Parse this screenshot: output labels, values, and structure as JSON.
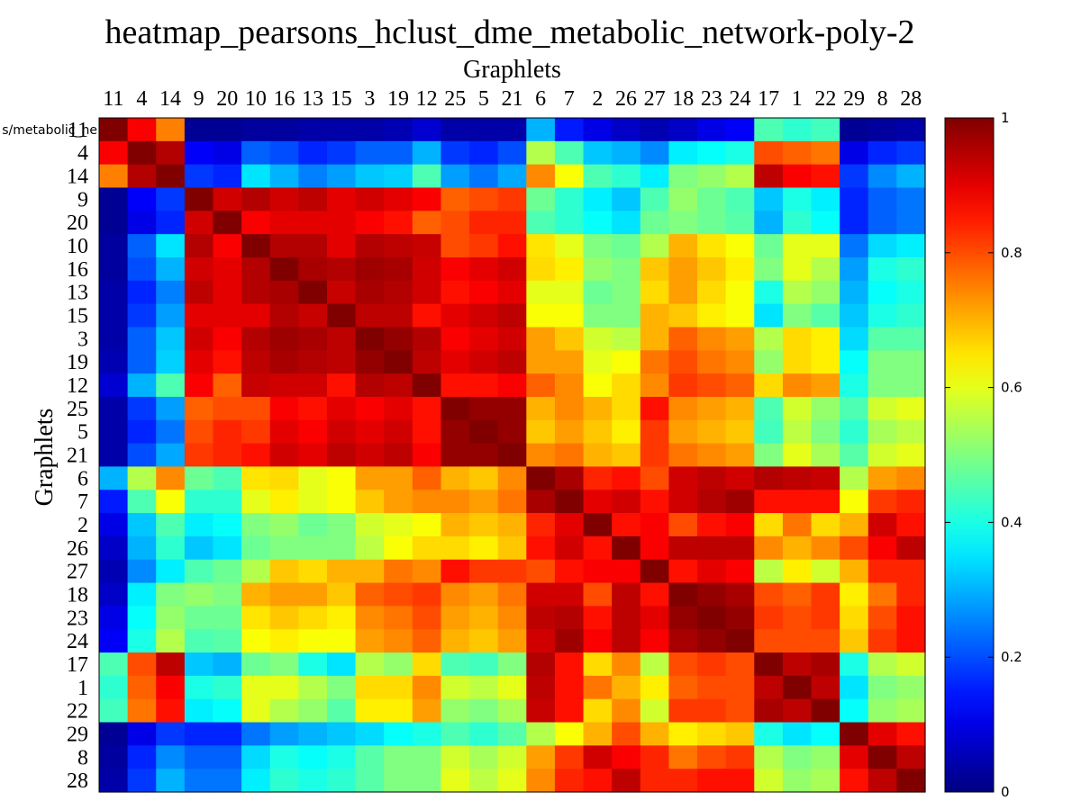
{
  "chart_data": {
    "type": "heatmap",
    "title": "heatmap_pearsons_hclust_dme_metabolic_network-poly-2",
    "xlabel": "Graphlets",
    "ylabel": "Graphlets",
    "clipped_row_label": "s/metabolic_ne",
    "colormap": "jet",
    "clim": [
      0,
      1
    ],
    "colorbar_ticks": [
      "0",
      "0.2",
      "0.4",
      "0.6",
      "0.8",
      "1"
    ],
    "colorbar_tick_values": [
      0,
      0.2,
      0.4,
      0.6,
      0.8,
      1
    ],
    "labels": [
      "11",
      "4",
      "14",
      "9",
      "20",
      "10",
      "16",
      "13",
      "15",
      "3",
      "19",
      "12",
      "25",
      "5",
      "21",
      "6",
      "7",
      "2",
      "26",
      "27",
      "18",
      "23",
      "24",
      "17",
      "1",
      "22",
      "29",
      "8",
      "28"
    ],
    "values": [
      [
        1.0,
        0.88,
        0.75,
        0.02,
        0.02,
        0.03,
        0.03,
        0.04,
        0.04,
        0.04,
        0.05,
        0.08,
        0.04,
        0.04,
        0.04,
        0.3,
        0.15,
        0.1,
        0.07,
        0.05,
        0.07,
        0.1,
        0.12,
        0.45,
        0.42,
        0.44,
        0.02,
        0.03,
        0.04
      ],
      [
        0.88,
        1.0,
        0.95,
        0.12,
        0.1,
        0.22,
        0.2,
        0.16,
        0.18,
        0.22,
        0.22,
        0.3,
        0.18,
        0.16,
        0.2,
        0.55,
        0.45,
        0.32,
        0.3,
        0.26,
        0.36,
        0.38,
        0.4,
        0.8,
        0.78,
        0.76,
        0.1,
        0.16,
        0.18
      ],
      [
        0.75,
        0.95,
        1.0,
        0.18,
        0.16,
        0.35,
        0.3,
        0.25,
        0.28,
        0.32,
        0.33,
        0.45,
        0.28,
        0.24,
        0.29,
        0.74,
        0.62,
        0.45,
        0.42,
        0.36,
        0.5,
        0.52,
        0.55,
        0.94,
        0.88,
        0.86,
        0.18,
        0.26,
        0.3
      ],
      [
        0.02,
        0.12,
        0.18,
        1.0,
        0.92,
        0.95,
        0.92,
        0.94,
        0.9,
        0.92,
        0.9,
        0.88,
        0.78,
        0.8,
        0.82,
        0.48,
        0.42,
        0.36,
        0.32,
        0.45,
        0.52,
        0.48,
        0.45,
        0.32,
        0.4,
        0.36,
        0.16,
        0.22,
        0.24
      ],
      [
        0.02,
        0.1,
        0.16,
        0.92,
        1.0,
        0.88,
        0.9,
        0.9,
        0.9,
        0.88,
        0.86,
        0.78,
        0.8,
        0.84,
        0.84,
        0.45,
        0.42,
        0.38,
        0.35,
        0.48,
        0.5,
        0.48,
        0.46,
        0.3,
        0.42,
        0.38,
        0.16,
        0.22,
        0.24
      ],
      [
        0.03,
        0.22,
        0.35,
        0.95,
        0.88,
        1.0,
        0.95,
        0.95,
        0.9,
        0.95,
        0.94,
        0.93,
        0.8,
        0.82,
        0.86,
        0.65,
        0.6,
        0.5,
        0.48,
        0.55,
        0.7,
        0.65,
        0.62,
        0.48,
        0.6,
        0.6,
        0.24,
        0.34,
        0.36
      ],
      [
        0.03,
        0.2,
        0.3,
        0.92,
        0.9,
        0.95,
        1.0,
        0.96,
        0.95,
        0.97,
        0.96,
        0.92,
        0.88,
        0.9,
        0.92,
        0.66,
        0.64,
        0.52,
        0.5,
        0.68,
        0.72,
        0.68,
        0.64,
        0.5,
        0.6,
        0.55,
        0.28,
        0.4,
        0.42
      ],
      [
        0.04,
        0.16,
        0.25,
        0.94,
        0.9,
        0.95,
        0.96,
        1.0,
        0.93,
        0.96,
        0.95,
        0.92,
        0.86,
        0.88,
        0.9,
        0.6,
        0.6,
        0.48,
        0.5,
        0.66,
        0.72,
        0.66,
        0.62,
        0.4,
        0.55,
        0.52,
        0.3,
        0.38,
        0.4
      ],
      [
        0.04,
        0.18,
        0.28,
        0.9,
        0.9,
        0.9,
        0.95,
        0.93,
        1.0,
        0.94,
        0.94,
        0.86,
        0.9,
        0.92,
        0.94,
        0.62,
        0.62,
        0.5,
        0.5,
        0.7,
        0.68,
        0.64,
        0.62,
        0.35,
        0.5,
        0.46,
        0.32,
        0.4,
        0.42
      ],
      [
        0.04,
        0.22,
        0.32,
        0.92,
        0.88,
        0.95,
        0.97,
        0.96,
        0.94,
        1.0,
        0.98,
        0.95,
        0.88,
        0.9,
        0.92,
        0.72,
        0.68,
        0.58,
        0.56,
        0.7,
        0.78,
        0.74,
        0.72,
        0.55,
        0.66,
        0.64,
        0.34,
        0.46,
        0.46
      ],
      [
        0.05,
        0.22,
        0.33,
        0.9,
        0.86,
        0.94,
        0.96,
        0.95,
        0.94,
        0.98,
        1.0,
        0.94,
        0.9,
        0.92,
        0.94,
        0.72,
        0.72,
        0.6,
        0.62,
        0.76,
        0.8,
        0.76,
        0.74,
        0.52,
        0.66,
        0.64,
        0.38,
        0.5,
        0.5
      ],
      [
        0.08,
        0.3,
        0.45,
        0.88,
        0.78,
        0.93,
        0.92,
        0.92,
        0.86,
        0.95,
        0.94,
        1.0,
        0.86,
        0.86,
        0.88,
        0.78,
        0.74,
        0.62,
        0.66,
        0.74,
        0.82,
        0.8,
        0.78,
        0.66,
        0.74,
        0.72,
        0.4,
        0.5,
        0.5
      ],
      [
        0.04,
        0.18,
        0.28,
        0.78,
        0.8,
        0.8,
        0.88,
        0.86,
        0.9,
        0.88,
        0.9,
        0.86,
        1.0,
        0.98,
        0.98,
        0.7,
        0.74,
        0.7,
        0.66,
        0.86,
        0.74,
        0.72,
        0.7,
        0.45,
        0.58,
        0.52,
        0.45,
        0.58,
        0.6
      ],
      [
        0.04,
        0.16,
        0.24,
        0.8,
        0.84,
        0.82,
        0.9,
        0.88,
        0.92,
        0.9,
        0.92,
        0.86,
        0.98,
        1.0,
        0.98,
        0.68,
        0.72,
        0.68,
        0.64,
        0.82,
        0.72,
        0.7,
        0.68,
        0.44,
        0.56,
        0.5,
        0.42,
        0.54,
        0.56
      ],
      [
        0.04,
        0.2,
        0.29,
        0.82,
        0.84,
        0.86,
        0.92,
        0.9,
        0.94,
        0.92,
        0.94,
        0.88,
        0.98,
        0.98,
        1.0,
        0.74,
        0.76,
        0.7,
        0.68,
        0.82,
        0.76,
        0.74,
        0.72,
        0.5,
        0.6,
        0.54,
        0.46,
        0.58,
        0.6
      ],
      [
        0.3,
        0.55,
        0.74,
        0.48,
        0.45,
        0.65,
        0.66,
        0.6,
        0.62,
        0.72,
        0.72,
        0.78,
        0.7,
        0.68,
        0.74,
        1.0,
        0.96,
        0.84,
        0.86,
        0.8,
        0.92,
        0.94,
        0.92,
        0.95,
        0.94,
        0.93,
        0.55,
        0.72,
        0.74
      ],
      [
        0.15,
        0.45,
        0.62,
        0.42,
        0.42,
        0.6,
        0.64,
        0.6,
        0.62,
        0.68,
        0.72,
        0.74,
        0.74,
        0.72,
        0.76,
        0.96,
        1.0,
        0.9,
        0.92,
        0.86,
        0.92,
        0.95,
        0.97,
        0.86,
        0.86,
        0.86,
        0.62,
        0.82,
        0.84
      ],
      [
        0.1,
        0.32,
        0.45,
        0.36,
        0.38,
        0.5,
        0.52,
        0.48,
        0.5,
        0.58,
        0.6,
        0.62,
        0.7,
        0.68,
        0.7,
        0.84,
        0.9,
        1.0,
        0.86,
        0.88,
        0.8,
        0.86,
        0.88,
        0.66,
        0.76,
        0.66,
        0.7,
        0.92,
        0.86
      ],
      [
        0.07,
        0.3,
        0.42,
        0.32,
        0.35,
        0.48,
        0.5,
        0.5,
        0.5,
        0.56,
        0.62,
        0.66,
        0.66,
        0.64,
        0.68,
        0.86,
        0.92,
        0.86,
        1.0,
        0.88,
        0.94,
        0.94,
        0.94,
        0.74,
        0.7,
        0.74,
        0.8,
        0.88,
        0.94
      ],
      [
        0.05,
        0.26,
        0.36,
        0.45,
        0.48,
        0.55,
        0.68,
        0.66,
        0.7,
        0.7,
        0.76,
        0.74,
        0.86,
        0.82,
        0.82,
        0.8,
        0.86,
        0.88,
        0.88,
        1.0,
        0.86,
        0.9,
        0.88,
        0.56,
        0.64,
        0.58,
        0.7,
        0.84,
        0.84
      ],
      [
        0.07,
        0.36,
        0.5,
        0.52,
        0.5,
        0.7,
        0.72,
        0.72,
        0.68,
        0.78,
        0.8,
        0.82,
        0.74,
        0.72,
        0.76,
        0.92,
        0.92,
        0.8,
        0.94,
        0.86,
        1.0,
        0.98,
        0.96,
        0.8,
        0.78,
        0.82,
        0.64,
        0.76,
        0.84
      ],
      [
        0.1,
        0.38,
        0.52,
        0.48,
        0.48,
        0.65,
        0.68,
        0.66,
        0.64,
        0.74,
        0.76,
        0.8,
        0.72,
        0.7,
        0.74,
        0.94,
        0.95,
        0.86,
        0.94,
        0.9,
        0.98,
        1.0,
        0.98,
        0.82,
        0.8,
        0.82,
        0.66,
        0.8,
        0.86
      ],
      [
        0.12,
        0.4,
        0.55,
        0.45,
        0.46,
        0.62,
        0.64,
        0.62,
        0.62,
        0.72,
        0.74,
        0.78,
        0.7,
        0.68,
        0.72,
        0.92,
        0.97,
        0.88,
        0.94,
        0.88,
        0.96,
        0.98,
        1.0,
        0.8,
        0.8,
        0.8,
        0.68,
        0.82,
        0.86
      ],
      [
        0.45,
        0.8,
        0.94,
        0.32,
        0.3,
        0.48,
        0.5,
        0.4,
        0.35,
        0.55,
        0.52,
        0.66,
        0.45,
        0.44,
        0.5,
        0.95,
        0.86,
        0.66,
        0.74,
        0.56,
        0.8,
        0.82,
        0.8,
        1.0,
        0.94,
        0.96,
        0.4,
        0.55,
        0.58
      ],
      [
        0.42,
        0.78,
        0.88,
        0.4,
        0.42,
        0.6,
        0.6,
        0.55,
        0.5,
        0.66,
        0.66,
        0.74,
        0.58,
        0.56,
        0.6,
        0.94,
        0.86,
        0.76,
        0.7,
        0.64,
        0.78,
        0.8,
        0.8,
        0.94,
        1.0,
        0.94,
        0.35,
        0.5,
        0.52
      ],
      [
        0.44,
        0.76,
        0.86,
        0.36,
        0.38,
        0.6,
        0.55,
        0.52,
        0.46,
        0.64,
        0.64,
        0.72,
        0.52,
        0.5,
        0.54,
        0.93,
        0.86,
        0.66,
        0.74,
        0.58,
        0.82,
        0.82,
        0.8,
        0.96,
        0.94,
        1.0,
        0.38,
        0.52,
        0.54
      ],
      [
        0.02,
        0.1,
        0.18,
        0.16,
        0.16,
        0.24,
        0.28,
        0.3,
        0.32,
        0.34,
        0.38,
        0.4,
        0.45,
        0.42,
        0.46,
        0.55,
        0.62,
        0.7,
        0.8,
        0.7,
        0.64,
        0.66,
        0.68,
        0.4,
        0.35,
        0.38,
        1.0,
        0.9,
        0.86
      ],
      [
        0.03,
        0.16,
        0.26,
        0.22,
        0.22,
        0.34,
        0.4,
        0.38,
        0.4,
        0.46,
        0.5,
        0.5,
        0.58,
        0.54,
        0.58,
        0.72,
        0.82,
        0.92,
        0.88,
        0.84,
        0.76,
        0.8,
        0.82,
        0.55,
        0.5,
        0.52,
        0.9,
        1.0,
        0.94
      ],
      [
        0.04,
        0.18,
        0.3,
        0.24,
        0.24,
        0.36,
        0.42,
        0.4,
        0.42,
        0.46,
        0.5,
        0.5,
        0.6,
        0.56,
        0.6,
        0.74,
        0.84,
        0.86,
        0.94,
        0.84,
        0.84,
        0.86,
        0.86,
        0.58,
        0.52,
        0.54,
        0.86,
        0.94,
        1.0
      ]
    ]
  }
}
